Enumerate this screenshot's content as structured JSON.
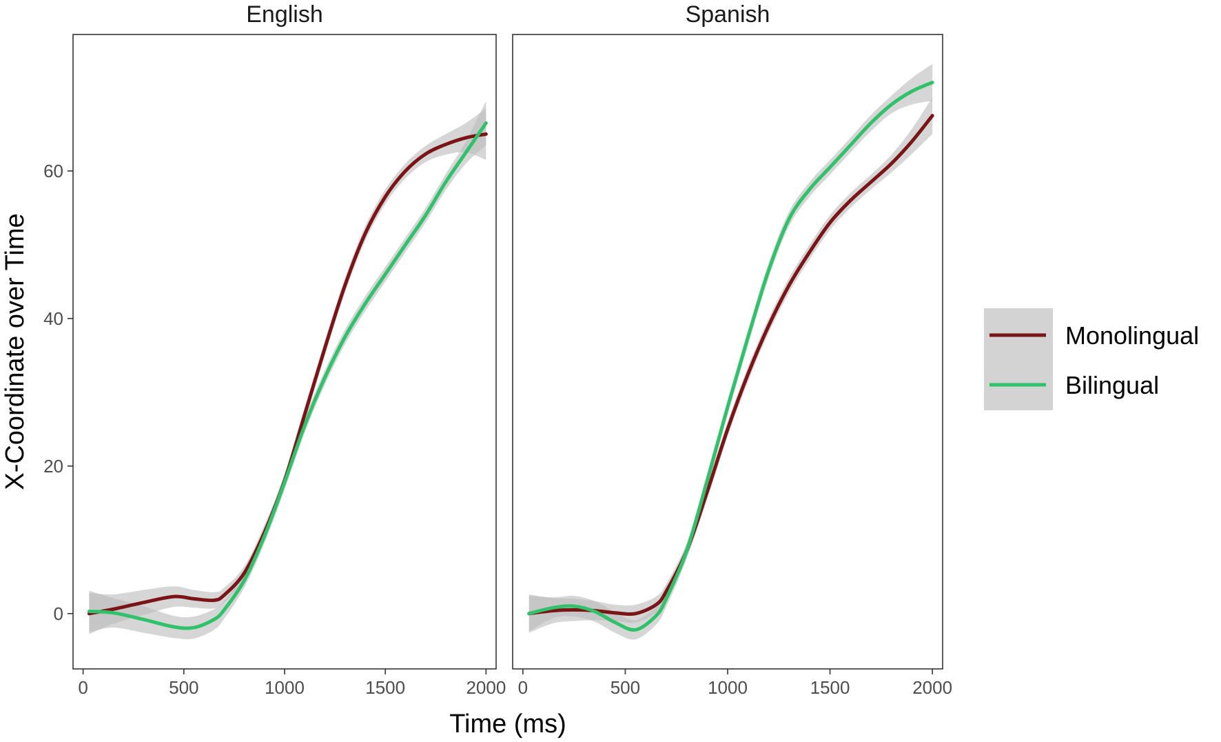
{
  "chart_data": {
    "type": "line",
    "xlabel": "Time (ms)",
    "ylabel": "X-Coordinate over Time",
    "xlim": [
      -50,
      2050
    ],
    "ylim": [
      -7.5,
      78.5
    ],
    "x_ticks": [
      0,
      500,
      1000,
      1500,
      2000
    ],
    "y_ticks": [
      0,
      20,
      40,
      60
    ],
    "x_tick_labels": [
      "0",
      "500",
      "1000",
      "1500",
      "2000"
    ],
    "y_tick_labels": [
      "0",
      "20",
      "40",
      "60"
    ],
    "grid": false,
    "legend_position": "right",
    "legend": [
      {
        "label": "Monolingual",
        "color": "#7a1416"
      },
      {
        "label": "Bilingual",
        "color": "#2fc26a"
      }
    ],
    "ribbon_color": "#bdbdbd",
    "legend_key_bg": "#d3d3d3",
    "panels": [
      {
        "label": "English",
        "series": [
          {
            "name": "Monolingual",
            "color": "#7a1416",
            "x": [
              30,
              150,
              300,
              450,
              550,
              650,
              700,
              800,
              900,
              1000,
              1100,
              1200,
              1300,
              1400,
              1500,
              1600,
              1700,
              1800,
              1900,
              2000
            ],
            "y": [
              0,
              0.6,
              1.5,
              2.3,
              2.0,
              1.8,
              2.5,
              5.5,
              11.0,
              18.0,
              27.0,
              36.0,
              44.5,
              51.5,
              56.5,
              60.0,
              62.3,
              63.6,
              64.5,
              65.0
            ],
            "lower": [
              -2.8,
              -1.4,
              -0.2,
              0.9,
              0.8,
              0.7,
              1.5,
              4.6,
              10.0,
              17.0,
              26.0,
              35.0,
              43.5,
              50.5,
              55.5,
              59.0,
              61.2,
              62.2,
              62.5,
              61.5
            ],
            "upper": [
              2.8,
              2.6,
              3.2,
              3.7,
              3.2,
              2.9,
              3.5,
              6.4,
              12.0,
              19.0,
              28.0,
              37.0,
              45.5,
              52.5,
              57.5,
              61.0,
              63.4,
              65.0,
              66.5,
              68.5
            ]
          },
          {
            "name": "Bilingual",
            "color": "#2fc26a",
            "x": [
              30,
              150,
              300,
              450,
              550,
              650,
              700,
              800,
              900,
              1000,
              1100,
              1200,
              1300,
              1400,
              1500,
              1600,
              1700,
              1800,
              1900,
              2000
            ],
            "y": [
              0.3,
              0.1,
              -0.8,
              -1.8,
              -1.9,
              -0.8,
              0.5,
              4.5,
              10.5,
              17.8,
              25.5,
              32.0,
              37.5,
              42.0,
              46.0,
              50.0,
              54.0,
              58.5,
              62.5,
              66.5
            ],
            "lower": [
              -2.5,
              -1.9,
              -2.6,
              -3.3,
              -3.4,
              -2.2,
              -0.7,
              3.5,
              9.5,
              16.8,
              24.5,
              31.0,
              36.5,
              41.0,
              45.0,
              49.0,
              53.0,
              57.4,
              61.0,
              63.5
            ],
            "upper": [
              3.1,
              2.1,
              1.0,
              -0.3,
              -0.4,
              0.6,
              1.7,
              5.5,
              11.5,
              18.8,
              26.5,
              33.0,
              38.5,
              43.0,
              47.0,
              51.0,
              55.0,
              59.6,
              64.0,
              69.5
            ]
          }
        ]
      },
      {
        "label": "Spanish",
        "series": [
          {
            "name": "Monolingual",
            "color": "#7a1416",
            "x": [
              30,
              150,
              250,
              350,
              450,
              550,
              650,
              700,
              800,
              900,
              1000,
              1100,
              1200,
              1300,
              1400,
              1500,
              1600,
              1700,
              1800,
              1900,
              2000
            ],
            "y": [
              0,
              0.4,
              0.5,
              0.4,
              0.1,
              0,
              1.2,
              3.0,
              8.5,
              16.5,
              25.0,
              32.5,
              39.0,
              44.5,
              49.0,
              53.0,
              56.0,
              58.5,
              61.0,
              64.0,
              67.5
            ],
            "lower": [
              -2.6,
              -1.3,
              -1.0,
              -0.9,
              -1.0,
              -1.2,
              0.1,
              2.0,
              7.5,
              15.5,
              24.0,
              31.5,
              38.0,
              43.5,
              48.0,
              52.0,
              55.0,
              57.5,
              59.8,
              62.3,
              65.0
            ],
            "upper": [
              2.6,
              2.1,
              2.0,
              1.7,
              1.2,
              1.2,
              2.3,
              4.0,
              9.5,
              17.5,
              26.0,
              33.5,
              40.0,
              45.5,
              50.0,
              54.0,
              57.0,
              59.5,
              62.2,
              65.7,
              70.0
            ]
          },
          {
            "name": "Bilingual",
            "color": "#2fc26a",
            "x": [
              30,
              150,
              250,
              350,
              450,
              550,
              650,
              700,
              800,
              900,
              1000,
              1100,
              1200,
              1300,
              1400,
              1500,
              1600,
              1700,
              1800,
              1900,
              2000
            ],
            "y": [
              0,
              0.8,
              1.0,
              0.3,
              -1.2,
              -2.2,
              -0.3,
              2.0,
              8.5,
              18.0,
              28.0,
              37.5,
              46.5,
              53.5,
              57.5,
              60.5,
              63.5,
              66.5,
              69.0,
              70.8,
              72.0
            ],
            "lower": [
              -2.4,
              -0.6,
              -0.4,
              -1.1,
              -2.6,
              -3.5,
              -1.5,
              0.9,
              7.5,
              17.0,
              27.0,
              36.5,
              45.5,
              52.5,
              56.5,
              59.5,
              62.5,
              65.4,
              67.8,
              69.0,
              69.5
            ],
            "upper": [
              2.4,
              2.2,
              2.4,
              1.7,
              0.2,
              -0.9,
              0.9,
              3.1,
              9.5,
              19.0,
              29.0,
              38.5,
              47.5,
              54.5,
              58.5,
              61.5,
              64.5,
              67.6,
              70.2,
              72.6,
              74.5
            ]
          }
        ]
      }
    ]
  }
}
